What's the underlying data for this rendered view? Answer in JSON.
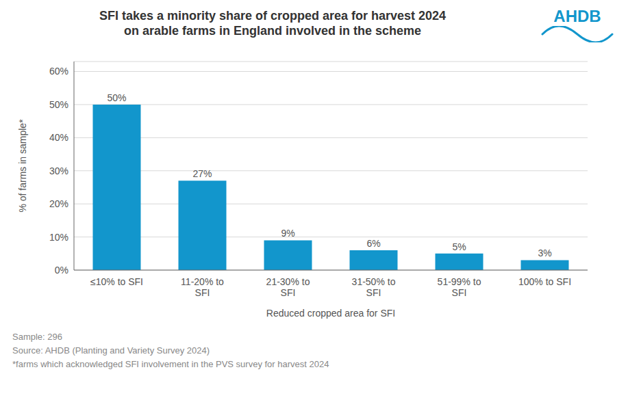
{
  "chart_data": {
    "type": "bar",
    "title": "SFI takes a minority share of cropped area for harvest 2024",
    "subtitle": "on arable farms in England involved in the scheme",
    "categories": [
      "≤10% to SFI",
      "11-20% to\nSFI",
      "21-30% to\nSFI",
      "31-50% to\nSFI",
      "51-99% to\nSFI",
      "100% to SFI"
    ],
    "values": [
      50,
      27,
      9,
      6,
      5,
      3
    ],
    "value_labels": [
      "50%",
      "27%",
      "9%",
      "6%",
      "5%",
      "3%"
    ],
    "data_labels": true,
    "color": "#1296CC",
    "ylabel": "% of farms in sample*",
    "xlabel": "Reduced cropped area for SFI",
    "ylim": [
      0,
      63
    ],
    "yticks": [
      {
        "value": 0,
        "label": "0%"
      },
      {
        "value": 10,
        "label": "10%"
      },
      {
        "value": 20,
        "label": "20%"
      },
      {
        "value": 30,
        "label": "30%"
      },
      {
        "value": 40,
        "label": "40%"
      },
      {
        "value": 50,
        "label": "50%"
      },
      {
        "value": 60,
        "label": "60%"
      }
    ],
    "grid": true,
    "annotations": [
      "AHDB",
      "Sample: 296",
      "Source: AHDB (Planting and Variety Survey 2024)",
      "*farms which acknowledged SFI involvement in the PVS survey for harvest 2024"
    ]
  }
}
